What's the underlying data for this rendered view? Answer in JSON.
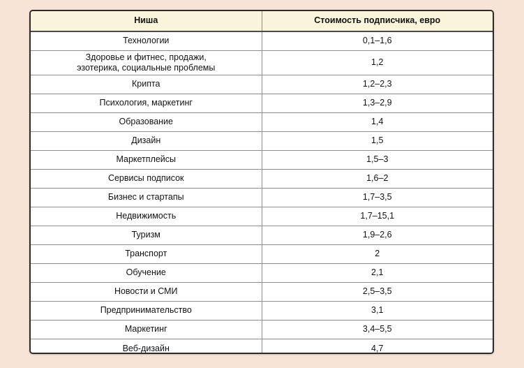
{
  "page": {
    "background_color": "#F7E4D6",
    "card_border_color": "#2b2b2b",
    "header_background_color": "#FAF4DA",
    "row_background_color": "#FFFFFF",
    "divider_color": "#8C8C8C"
  },
  "chart_data": {
    "type": "table",
    "columns": [
      "Ниша",
      "Стоимость подписчика, евро"
    ],
    "rows": [
      {
        "niche": "Технологии",
        "value": "0,1–1,6"
      },
      {
        "niche": "Здоровье и фитнес, продажи,\nэзотерика, социальные проблемы",
        "value": "1,2"
      },
      {
        "niche": "Крипта",
        "value": "1,2–2,3"
      },
      {
        "niche": "Психология, маркетинг",
        "value": "1,3–2,9"
      },
      {
        "niche": "Образование",
        "value": "1,4"
      },
      {
        "niche": "Дизайн",
        "value": "1,5"
      },
      {
        "niche": "Маркетплейсы",
        "value": "1,5–3"
      },
      {
        "niche": "Сервисы подписок",
        "value": "1,6–2"
      },
      {
        "niche": "Бизнес и стартапы",
        "value": "1,7–3,5"
      },
      {
        "niche": "Недвижимость",
        "value": "1,7–15,1"
      },
      {
        "niche": "Туризм",
        "value": "1,9–2,6"
      },
      {
        "niche": "Транспорт",
        "value": "2"
      },
      {
        "niche": "Обучение",
        "value": "2,1"
      },
      {
        "niche": "Новости и СМИ",
        "value": "2,5–3,5"
      },
      {
        "niche": "Предпринимательство",
        "value": "3,1"
      },
      {
        "niche": "Маркетинг",
        "value": "3,4–5,5"
      },
      {
        "niche": "Веб-дизайн",
        "value": "4,7"
      }
    ]
  }
}
